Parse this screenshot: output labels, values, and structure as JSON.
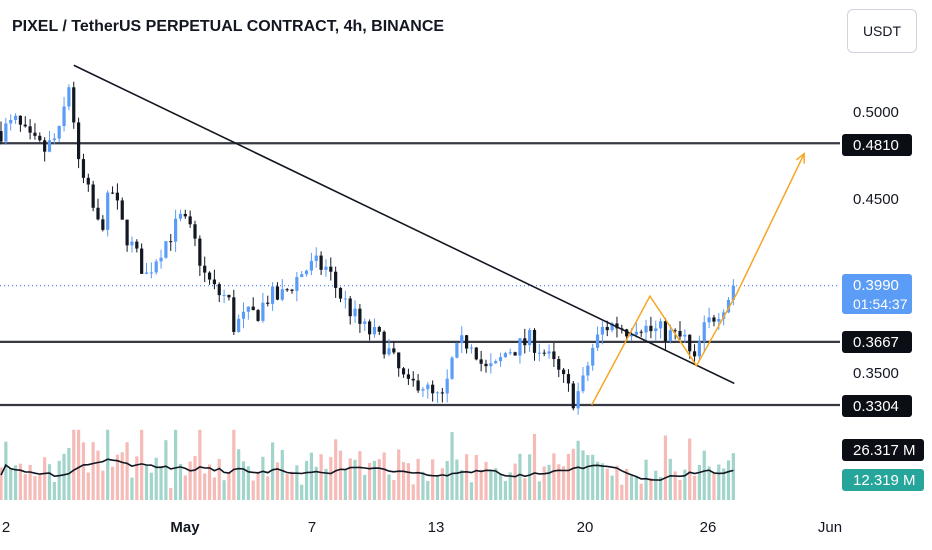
{
  "header": {
    "title": "PIXEL / TetherUS PERPETUAL CONTRACT, 4h, BINANCE",
    "currency": "USDT"
  },
  "colors": {
    "up": "#5b9cf6",
    "down": "#131722",
    "vol_up": "#89c9bd",
    "vol_down": "#f4a9a5",
    "orange": "#f5a623",
    "price_line": "#2962ff"
  },
  "chart_data": {
    "type": "candlestick",
    "symbol": "PIXEL / TetherUS PERPETUAL CONTRACT",
    "interval": "4h",
    "exchange": "BINANCE",
    "x_ticks": [
      "2",
      "May",
      "7",
      "13",
      "20",
      "26",
      "Jun"
    ],
    "y_ticks": [
      "0.5000",
      "0.4500",
      "0.3500"
    ],
    "price_labels": [
      {
        "value": "0.4810",
        "style": "dark"
      },
      {
        "value": "0.3990",
        "style": "blue",
        "countdown": "01:54:37"
      },
      {
        "value": "0.3667",
        "style": "dark"
      },
      {
        "value": "0.3304",
        "style": "dark"
      }
    ],
    "volume_labels": [
      {
        "value": "26.317 M",
        "style": "dark"
      },
      {
        "value": "12.319 M",
        "style": "teal"
      }
    ],
    "ylim": [
      0.318,
      0.54
    ],
    "horizontal_levels": [
      0.481,
      0.3667,
      0.3304
    ],
    "current_price": 0.399,
    "trendline": [
      {
        "t": 2.5,
        "p": 0.5259
      },
      {
        "t": 25.2,
        "p": 0.3428
      }
    ],
    "projection_path": [
      {
        "t": 20.3,
        "p": 0.3304
      },
      {
        "t": 22.3,
        "p": 0.393
      },
      {
        "t": 23.9,
        "p": 0.353
      },
      {
        "t": 25.3,
        "p": 0.395
      },
      {
        "t": 27.6,
        "p": 0.475
      }
    ],
    "price_path": [
      [
        0.0,
        0.488
      ],
      [
        0.5,
        0.493
      ],
      [
        1.0,
        0.482
      ],
      [
        1.5,
        0.477
      ],
      [
        2.0,
        0.486
      ],
      [
        2.4,
        0.52
      ],
      [
        2.6,
        0.47
      ],
      [
        3.0,
        0.452
      ],
      [
        3.4,
        0.43
      ],
      [
        3.8,
        0.455
      ],
      [
        4.2,
        0.432
      ],
      [
        4.6,
        0.418
      ],
      [
        5.0,
        0.405
      ],
      [
        5.4,
        0.418
      ],
      [
        5.8,
        0.428
      ],
      [
        6.2,
        0.438
      ],
      [
        6.6,
        0.427
      ],
      [
        7.0,
        0.405
      ],
      [
        7.4,
        0.395
      ],
      [
        7.8,
        0.392
      ],
      [
        8.0,
        0.376
      ],
      [
        8.4,
        0.381
      ],
      [
        8.8,
        0.383
      ],
      [
        9.2,
        0.393
      ],
      [
        9.6,
        0.392
      ],
      [
        10.0,
        0.4
      ],
      [
        10.4,
        0.408
      ],
      [
        10.8,
        0.411
      ],
      [
        11.2,
        0.409
      ],
      [
        11.6,
        0.395
      ],
      [
        12.0,
        0.385
      ],
      [
        12.4,
        0.375
      ],
      [
        12.8,
        0.371
      ],
      [
        13.2,
        0.365
      ],
      [
        13.6,
        0.352
      ],
      [
        14.0,
        0.34
      ],
      [
        14.4,
        0.345
      ],
      [
        14.8,
        0.335
      ],
      [
        15.2,
        0.333
      ],
      [
        15.5,
        0.355
      ],
      [
        15.8,
        0.365
      ],
      [
        16.2,
        0.368
      ],
      [
        16.6,
        0.35
      ],
      [
        17.0,
        0.352
      ],
      [
        17.4,
        0.362
      ],
      [
        17.8,
        0.364
      ],
      [
        18.2,
        0.368
      ],
      [
        18.6,
        0.362
      ],
      [
        19.0,
        0.353
      ],
      [
        19.4,
        0.342
      ],
      [
        19.7,
        0.333
      ],
      [
        20.0,
        0.343
      ],
      [
        20.3,
        0.362
      ],
      [
        20.7,
        0.375
      ],
      [
        21.1,
        0.377
      ],
      [
        21.5,
        0.374
      ],
      [
        21.9,
        0.378
      ],
      [
        22.3,
        0.373
      ],
      [
        22.7,
        0.373
      ],
      [
        23.1,
        0.37
      ],
      [
        23.5,
        0.368
      ],
      [
        23.8,
        0.352
      ],
      [
        24.1,
        0.372
      ],
      [
        24.5,
        0.382
      ],
      [
        24.9,
        0.39
      ],
      [
        25.2,
        0.399
      ]
    ]
  }
}
